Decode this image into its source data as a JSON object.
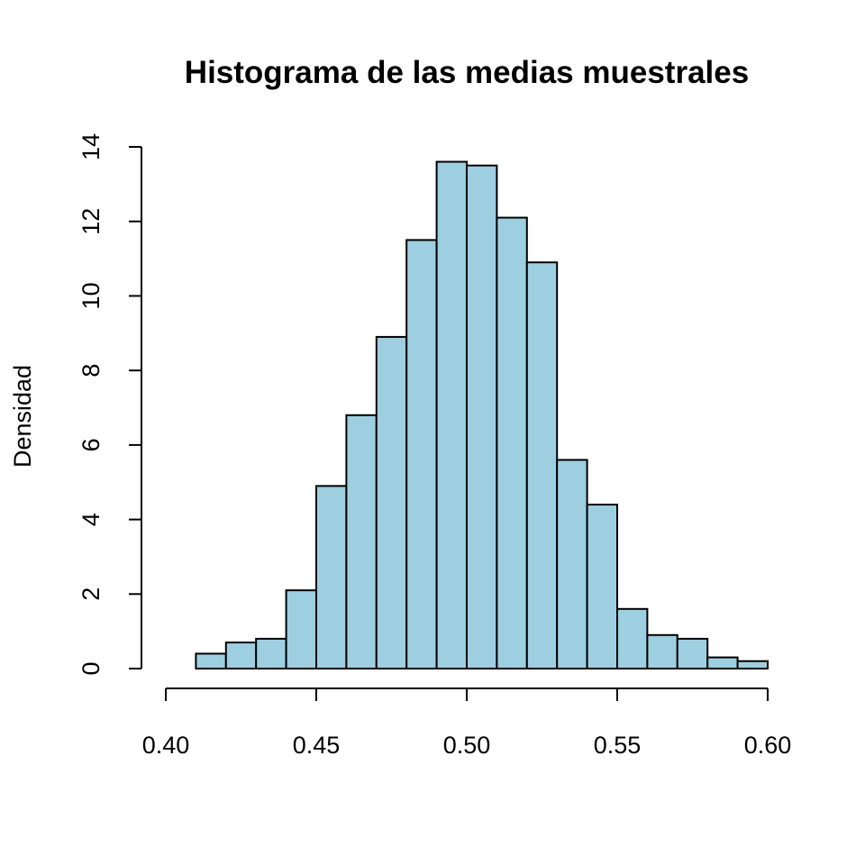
{
  "chart_data": {
    "type": "histogram",
    "title": "Histograma de las medias muestrales",
    "xlabel": "",
    "ylabel": "Densidad",
    "bar_color": "#9ecfe0",
    "edge_color": "#000000",
    "bins": [
      {
        "start": 0.41,
        "end": 0.42,
        "density": 0.4
      },
      {
        "start": 0.42,
        "end": 0.43,
        "density": 0.7
      },
      {
        "start": 0.43,
        "end": 0.44,
        "density": 0.8
      },
      {
        "start": 0.44,
        "end": 0.45,
        "density": 2.1
      },
      {
        "start": 0.45,
        "end": 0.46,
        "density": 4.9
      },
      {
        "start": 0.46,
        "end": 0.47,
        "density": 6.8
      },
      {
        "start": 0.47,
        "end": 0.48,
        "density": 8.9
      },
      {
        "start": 0.48,
        "end": 0.49,
        "density": 11.5
      },
      {
        "start": 0.49,
        "end": 0.5,
        "density": 13.6
      },
      {
        "start": 0.5,
        "end": 0.51,
        "density": 13.5
      },
      {
        "start": 0.51,
        "end": 0.52,
        "density": 12.1
      },
      {
        "start": 0.52,
        "end": 0.53,
        "density": 10.9
      },
      {
        "start": 0.53,
        "end": 0.54,
        "density": 5.6
      },
      {
        "start": 0.54,
        "end": 0.55,
        "density": 4.4
      },
      {
        "start": 0.55,
        "end": 0.56,
        "density": 1.6
      },
      {
        "start": 0.56,
        "end": 0.57,
        "density": 0.9
      },
      {
        "start": 0.57,
        "end": 0.58,
        "density": 0.8
      },
      {
        "start": 0.58,
        "end": 0.59,
        "density": 0.3
      },
      {
        "start": 0.59,
        "end": 0.6,
        "density": 0.2
      }
    ],
    "xlim": [
      0.4,
      0.6
    ],
    "ylim": [
      0,
      14
    ],
    "x_ticks": [
      {
        "value": 0.4,
        "label": "0.40"
      },
      {
        "value": 0.45,
        "label": "0.45"
      },
      {
        "value": 0.5,
        "label": "0.50"
      },
      {
        "value": 0.55,
        "label": "0.55"
      },
      {
        "value": 0.6,
        "label": "0.60"
      }
    ],
    "y_ticks": [
      {
        "value": 0,
        "label": "0"
      },
      {
        "value": 2,
        "label": "2"
      },
      {
        "value": 4,
        "label": "4"
      },
      {
        "value": 6,
        "label": "6"
      },
      {
        "value": 8,
        "label": "8"
      },
      {
        "value": 10,
        "label": "10"
      },
      {
        "value": 12,
        "label": "12"
      },
      {
        "value": 14,
        "label": "14"
      }
    ],
    "grid": false,
    "legend": "none"
  }
}
